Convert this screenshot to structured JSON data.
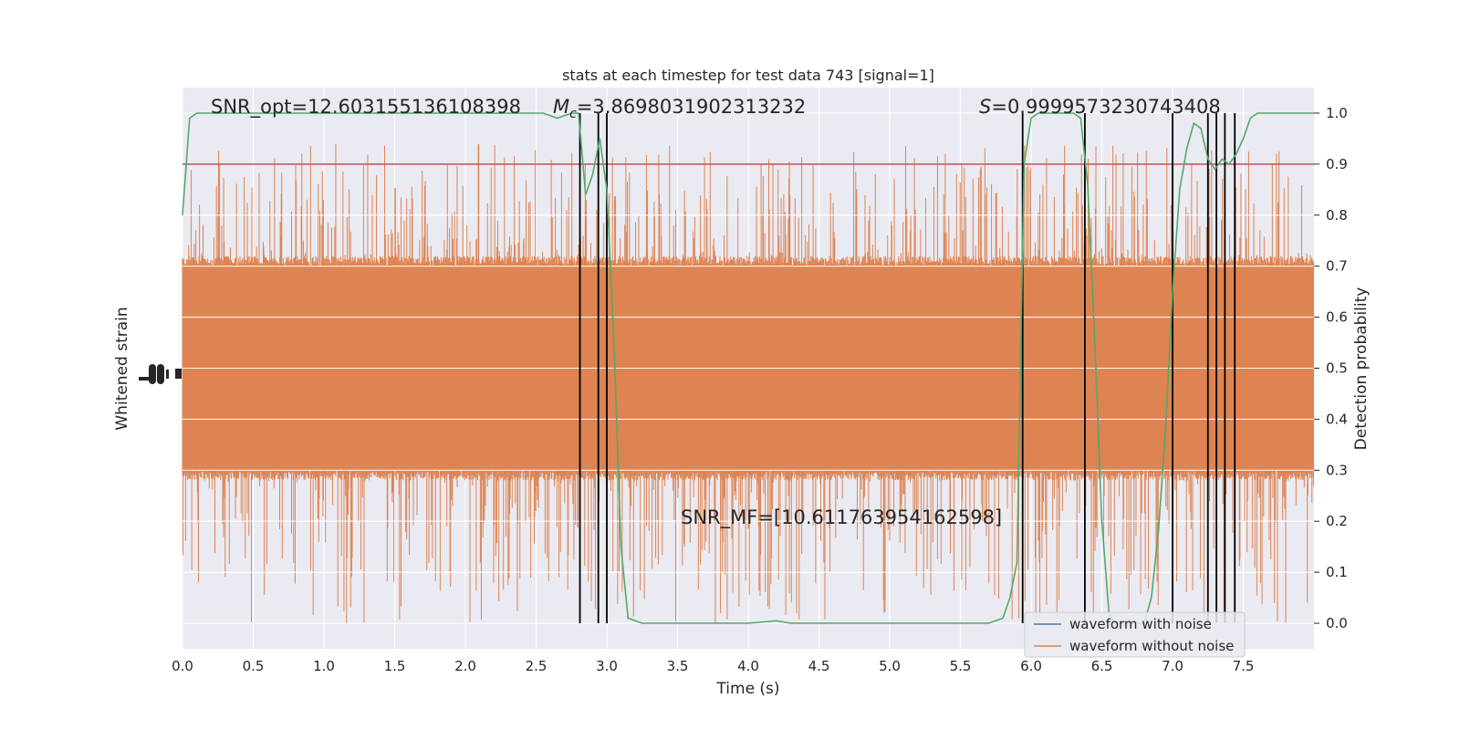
{
  "chart_data": {
    "type": "line",
    "title": "stats at each timestep for test data 743 [signal=1]",
    "xlabel": "Time (s)",
    "ylabel_left": "Whitened strain",
    "ylabel_right": "Detection probability",
    "xlim": [
      0.0,
      8.0
    ],
    "ylim_right": [
      -0.05,
      1.05
    ],
    "xticks": [
      "0.0",
      "0.5",
      "1.0",
      "1.5",
      "2.0",
      "2.5",
      "3.0",
      "3.5",
      "4.0",
      "4.5",
      "5.0",
      "5.5",
      "6.0",
      "6.5",
      "7.0",
      "7.5"
    ],
    "yticks_right": [
      "0.0",
      "0.1",
      "0.2",
      "0.3",
      "0.4",
      "0.5",
      "0.6",
      "0.7",
      "0.8",
      "0.9",
      "1.0"
    ],
    "grid": true,
    "legend_placement": "bottom-right",
    "series": [
      {
        "name": "waveform with noise",
        "color": "#4c72b0"
      },
      {
        "name": "waveform without noise",
        "color": "#dd8452"
      }
    ],
    "strain_band": {
      "core_range": [
        0.3,
        0.7
      ],
      "spike_range": [
        0.0,
        0.94
      ]
    },
    "detection_probability": {
      "color": "#55a868",
      "x": [
        0.0,
        0.05,
        0.1,
        0.5,
        1.0,
        1.5,
        2.0,
        2.5,
        2.55,
        2.65,
        2.75,
        2.8,
        2.85,
        2.9,
        2.95,
        3.0,
        3.05,
        3.1,
        3.15,
        3.25,
        3.4,
        3.6,
        3.8,
        4.0,
        4.2,
        4.3,
        4.6,
        5.0,
        5.5,
        5.7,
        5.8,
        5.85,
        5.9,
        5.95,
        6.0,
        6.05,
        6.1,
        6.2,
        6.3,
        6.35,
        6.4,
        6.45,
        6.5,
        6.55,
        6.6,
        6.65,
        6.7,
        6.75,
        6.8,
        6.85,
        6.9,
        6.95,
        7.0,
        7.05,
        7.1,
        7.15,
        7.2,
        7.25,
        7.3,
        7.35,
        7.4,
        7.45,
        7.5,
        7.55,
        7.6,
        7.7,
        7.8,
        8.0
      ],
      "y": [
        0.8,
        0.99,
        1.0,
        1.0,
        1.0,
        1.0,
        1.0,
        1.0,
        1.0,
        0.99,
        1.0,
        1.0,
        0.84,
        0.88,
        0.95,
        0.85,
        0.55,
        0.15,
        0.01,
        0.0,
        0.0,
        0.0,
        0.0,
        0.0,
        0.005,
        0.0,
        0.0,
        0.0,
        0.0,
        0.0,
        0.01,
        0.05,
        0.12,
        0.9,
        0.99,
        1.0,
        1.0,
        1.0,
        1.0,
        0.99,
        0.86,
        0.55,
        0.2,
        0.02,
        0.0,
        0.0,
        0.0,
        0.0,
        0.0,
        0.05,
        0.18,
        0.38,
        0.65,
        0.85,
        0.93,
        0.98,
        0.97,
        0.91,
        0.89,
        0.91,
        0.9,
        0.92,
        0.95,
        0.99,
        1.0,
        1.0,
        1.0,
        1.0
      ]
    },
    "threshold": {
      "value": 0.9,
      "color": "#c44e52"
    },
    "detection_times": [
      2.81,
      2.94,
      3.0,
      5.94,
      6.38,
      7.0,
      7.25,
      7.31,
      7.37,
      7.44
    ],
    "annotations": {
      "snr_opt": "SNR_opt=12.603155136108398",
      "mc_symbol": "M",
      "mc_subscript": "c",
      "mc_value": "=3.8698031902313232",
      "s_symbol": "S",
      "s_value": "=0.9999573230743408",
      "snr_mf": "SNR_MF=[10.611763954162598]"
    }
  }
}
